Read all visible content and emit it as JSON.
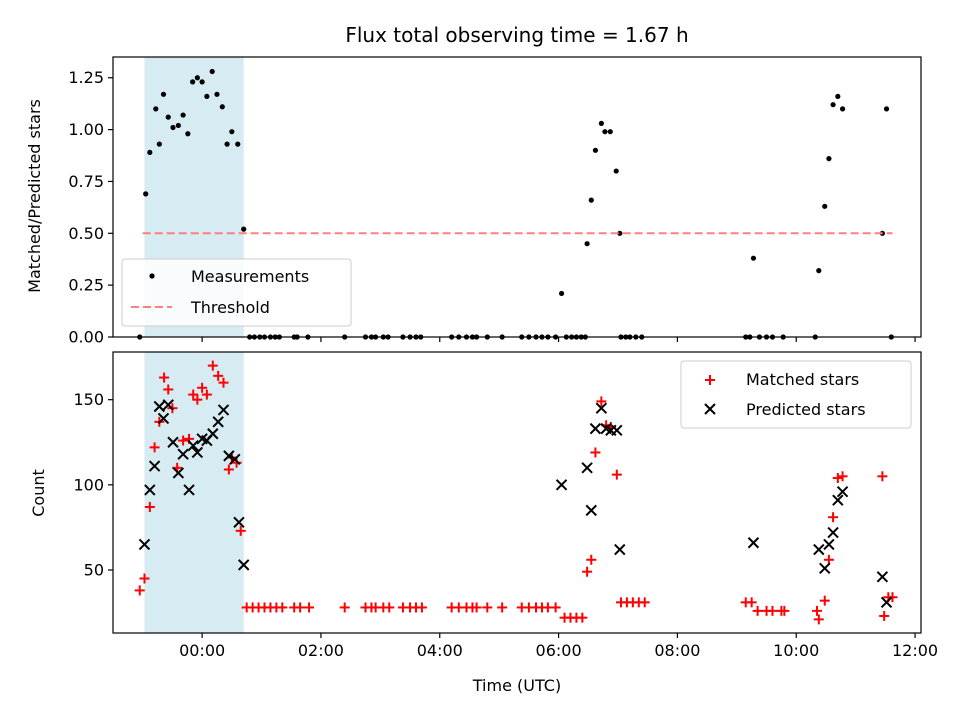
{
  "chart_data": [
    {
      "type": "scatter",
      "title": "Flux total observing time = 1.67 h",
      "ylabel": "Matched/Predicted stars",
      "xlabel": "",
      "xlim": [
        -1.5,
        12.1
      ],
      "ylim": [
        0,
        1.35
      ],
      "yticks": [
        0.0,
        0.25,
        0.5,
        0.75,
        1.0,
        1.25
      ],
      "ytick_labels": [
        "0.00",
        "0.25",
        "0.50",
        "0.75",
        "1.00",
        "1.25"
      ],
      "xticks": [
        0,
        2,
        4,
        6,
        8,
        10,
        12
      ],
      "show_xtick_labels": false,
      "highlight_span": {
        "x": [
          -0.97,
          0.7
        ],
        "color": "#add8e6"
      },
      "legend": {
        "placement": "lower left"
      },
      "series": [
        {
          "name": "Measurements",
          "marker": "dot",
          "color": "#000000",
          "points": [
            [
              -0.95,
              0.69
            ],
            [
              -0.88,
              0.89
            ],
            [
              -0.78,
              1.1
            ],
            [
              -0.72,
              0.93
            ],
            [
              -0.65,
              1.17
            ],
            [
              -0.57,
              1.06
            ],
            [
              -0.49,
              1.01
            ],
            [
              -0.4,
              1.02
            ],
            [
              -0.32,
              1.07
            ],
            [
              -0.24,
              0.98
            ],
            [
              -0.16,
              1.23
            ],
            [
              -0.08,
              1.25
            ],
            [
              0.0,
              1.23
            ],
            [
              0.08,
              1.16
            ],
            [
              0.17,
              1.28
            ],
            [
              0.25,
              1.17
            ],
            [
              0.34,
              1.11
            ],
            [
              0.42,
              0.93
            ],
            [
              0.5,
              0.99
            ],
            [
              0.6,
              0.93
            ],
            [
              0.7,
              0.52
            ],
            [
              -1.05,
              0.0
            ],
            [
              0.8,
              0.0
            ],
            [
              0.88,
              0.0
            ],
            [
              0.97,
              0.0
            ],
            [
              1.05,
              0.0
            ],
            [
              1.15,
              0.0
            ],
            [
              1.23,
              0.0
            ],
            [
              1.3,
              0.0
            ],
            [
              1.55,
              0.0
            ],
            [
              1.6,
              0.0
            ],
            [
              1.78,
              0.0
            ],
            [
              2.4,
              0.0
            ],
            [
              2.75,
              0.0
            ],
            [
              2.85,
              0.0
            ],
            [
              2.92,
              0.0
            ],
            [
              3.05,
              0.0
            ],
            [
              3.13,
              0.0
            ],
            [
              3.38,
              0.0
            ],
            [
              3.5,
              0.0
            ],
            [
              3.6,
              0.0
            ],
            [
              3.68,
              0.0
            ],
            [
              4.2,
              0.0
            ],
            [
              4.32,
              0.0
            ],
            [
              4.45,
              0.0
            ],
            [
              4.55,
              0.0
            ],
            [
              4.62,
              0.0
            ],
            [
              4.8,
              0.0
            ],
            [
              5.05,
              0.0
            ],
            [
              5.38,
              0.0
            ],
            [
              5.5,
              0.0
            ],
            [
              5.62,
              0.0
            ],
            [
              5.72,
              0.0
            ],
            [
              5.82,
              0.0
            ],
            [
              5.95,
              0.0
            ],
            [
              6.13,
              0.0
            ],
            [
              6.22,
              0.0
            ],
            [
              6.3,
              0.0
            ],
            [
              6.38,
              0.0
            ],
            [
              6.45,
              0.0
            ],
            [
              7.05,
              0.0
            ],
            [
              7.13,
              0.0
            ],
            [
              7.2,
              0.0
            ],
            [
              7.3,
              0.0
            ],
            [
              7.4,
              0.0
            ],
            [
              9.15,
              0.0
            ],
            [
              9.22,
              0.0
            ],
            [
              9.38,
              0.0
            ],
            [
              9.5,
              0.0
            ],
            [
              9.6,
              0.0
            ],
            [
              9.78,
              0.0
            ],
            [
              10.32,
              0.0
            ],
            [
              11.6,
              0.0
            ],
            [
              6.05,
              0.21
            ],
            [
              6.48,
              0.45
            ],
            [
              6.55,
              0.66
            ],
            [
              6.62,
              0.9
            ],
            [
              6.72,
              1.03
            ],
            [
              6.78,
              0.99
            ],
            [
              6.87,
              0.99
            ],
            [
              6.97,
              0.8
            ],
            [
              7.03,
              0.5
            ],
            [
              9.28,
              0.38
            ],
            [
              10.38,
              0.32
            ],
            [
              10.48,
              0.63
            ],
            [
              10.55,
              0.86
            ],
            [
              10.62,
              1.12
            ],
            [
              10.7,
              1.16
            ],
            [
              10.78,
              1.1
            ],
            [
              11.45,
              0.5
            ],
            [
              11.52,
              1.1
            ]
          ]
        },
        {
          "name": "Threshold",
          "marker": "dashed-line",
          "color": "#ff7f7f",
          "x": [
            -1.0,
            11.62
          ],
          "y": [
            0.5,
            0.5
          ]
        }
      ]
    },
    {
      "type": "scatter",
      "title": "",
      "xlabel": "Time (UTC)",
      "ylabel": "Count",
      "xlim": [
        -1.5,
        12.1
      ],
      "ylim": [
        13,
        178
      ],
      "yticks": [
        50,
        100,
        150
      ],
      "ytick_labels": [
        "50",
        "100",
        "150"
      ],
      "xticks": [
        0,
        2,
        4,
        6,
        8,
        10,
        12
      ],
      "xtick_labels": [
        "00:00",
        "02:00",
        "04:00",
        "06:00",
        "08:00",
        "10:00",
        "12:00"
      ],
      "highlight_span": {
        "x": [
          -0.97,
          0.7
        ],
        "color": "#add8e6"
      },
      "legend": {
        "placement": "upper right"
      },
      "series": [
        {
          "name": "Matched stars",
          "marker": "plus",
          "color": "#ff0000",
          "points": [
            [
              -1.05,
              38
            ],
            [
              -0.97,
              45
            ],
            [
              -0.88,
              87
            ],
            [
              -0.8,
              122
            ],
            [
              -0.72,
              137
            ],
            [
              -0.64,
              163
            ],
            [
              -0.57,
              156
            ],
            [
              -0.5,
              145
            ],
            [
              -0.42,
              110
            ],
            [
              -0.32,
              126
            ],
            [
              -0.22,
              127
            ],
            [
              -0.15,
              153
            ],
            [
              -0.08,
              150
            ],
            [
              0.0,
              157
            ],
            [
              0.08,
              153
            ],
            [
              0.18,
              170
            ],
            [
              0.27,
              164
            ],
            [
              0.36,
              160
            ],
            [
              0.45,
              109
            ],
            [
              0.5,
              116
            ],
            [
              0.58,
              113
            ],
            [
              0.65,
              73
            ],
            [
              0.75,
              28
            ],
            [
              0.85,
              28
            ],
            [
              0.95,
              28
            ],
            [
              1.05,
              28
            ],
            [
              1.15,
              28
            ],
            [
              1.25,
              28
            ],
            [
              1.35,
              28
            ],
            [
              1.55,
              28
            ],
            [
              1.65,
              28
            ],
            [
              1.8,
              28
            ],
            [
              2.4,
              28
            ],
            [
              2.75,
              28
            ],
            [
              2.85,
              28
            ],
            [
              2.92,
              28
            ],
            [
              3.05,
              28
            ],
            [
              3.15,
              28
            ],
            [
              3.38,
              28
            ],
            [
              3.5,
              28
            ],
            [
              3.6,
              28
            ],
            [
              3.7,
              28
            ],
            [
              4.2,
              28
            ],
            [
              4.32,
              28
            ],
            [
              4.45,
              28
            ],
            [
              4.55,
              28
            ],
            [
              4.62,
              28
            ],
            [
              4.8,
              28
            ],
            [
              5.05,
              28
            ],
            [
              5.38,
              28
            ],
            [
              5.5,
              28
            ],
            [
              5.62,
              28
            ],
            [
              5.72,
              28
            ],
            [
              5.82,
              28
            ],
            [
              5.95,
              28
            ],
            [
              6.1,
              22
            ],
            [
              6.2,
              22
            ],
            [
              6.3,
              22
            ],
            [
              6.4,
              22
            ],
            [
              6.48,
              49
            ],
            [
              6.55,
              56
            ],
            [
              6.62,
              119
            ],
            [
              6.72,
              149
            ],
            [
              6.8,
              135
            ],
            [
              6.88,
              134
            ],
            [
              6.98,
              106
            ],
            [
              7.05,
              31
            ],
            [
              7.15,
              31
            ],
            [
              7.25,
              31
            ],
            [
              7.35,
              31
            ],
            [
              7.45,
              31
            ],
            [
              9.15,
              31
            ],
            [
              9.25,
              31
            ],
            [
              9.35,
              26
            ],
            [
              9.5,
              26
            ],
            [
              9.6,
              26
            ],
            [
              9.75,
              26
            ],
            [
              9.8,
              26
            ],
            [
              10.35,
              26
            ],
            [
              10.38,
              21
            ],
            [
              10.48,
              32
            ],
            [
              10.55,
              56
            ],
            [
              10.62,
              81
            ],
            [
              10.7,
              104
            ],
            [
              10.78,
              105
            ],
            [
              11.45,
              105
            ],
            [
              11.48,
              23
            ],
            [
              11.55,
              34
            ],
            [
              11.62,
              34
            ]
          ]
        },
        {
          "name": "Predicted stars",
          "marker": "x",
          "color": "#000000",
          "points": [
            [
              -0.97,
              65
            ],
            [
              -0.88,
              97
            ],
            [
              -0.8,
              111
            ],
            [
              -0.72,
              146
            ],
            [
              -0.65,
              139
            ],
            [
              -0.57,
              147
            ],
            [
              -0.49,
              125
            ],
            [
              -0.4,
              107
            ],
            [
              -0.32,
              118
            ],
            [
              -0.22,
              97
            ],
            [
              -0.15,
              123
            ],
            [
              -0.08,
              119
            ],
            [
              0.0,
              127
            ],
            [
              0.08,
              126
            ],
            [
              0.18,
              130
            ],
            [
              0.27,
              137
            ],
            [
              0.36,
              144
            ],
            [
              0.45,
              117
            ],
            [
              0.55,
              115
            ],
            [
              0.62,
              78
            ],
            [
              0.7,
              53
            ],
            [
              6.05,
              100
            ],
            [
              6.48,
              110
            ],
            [
              6.55,
              85
            ],
            [
              6.62,
              133
            ],
            [
              6.72,
              145
            ],
            [
              6.8,
              133
            ],
            [
              6.88,
              132
            ],
            [
              6.98,
              132
            ],
            [
              7.03,
              62
            ],
            [
              9.28,
              66
            ],
            [
              10.38,
              62
            ],
            [
              10.48,
              51
            ],
            [
              10.55,
              65
            ],
            [
              10.62,
              72
            ],
            [
              10.7,
              91
            ],
            [
              10.78,
              96
            ],
            [
              11.45,
              46
            ],
            [
              11.52,
              31
            ]
          ]
        }
      ]
    }
  ]
}
